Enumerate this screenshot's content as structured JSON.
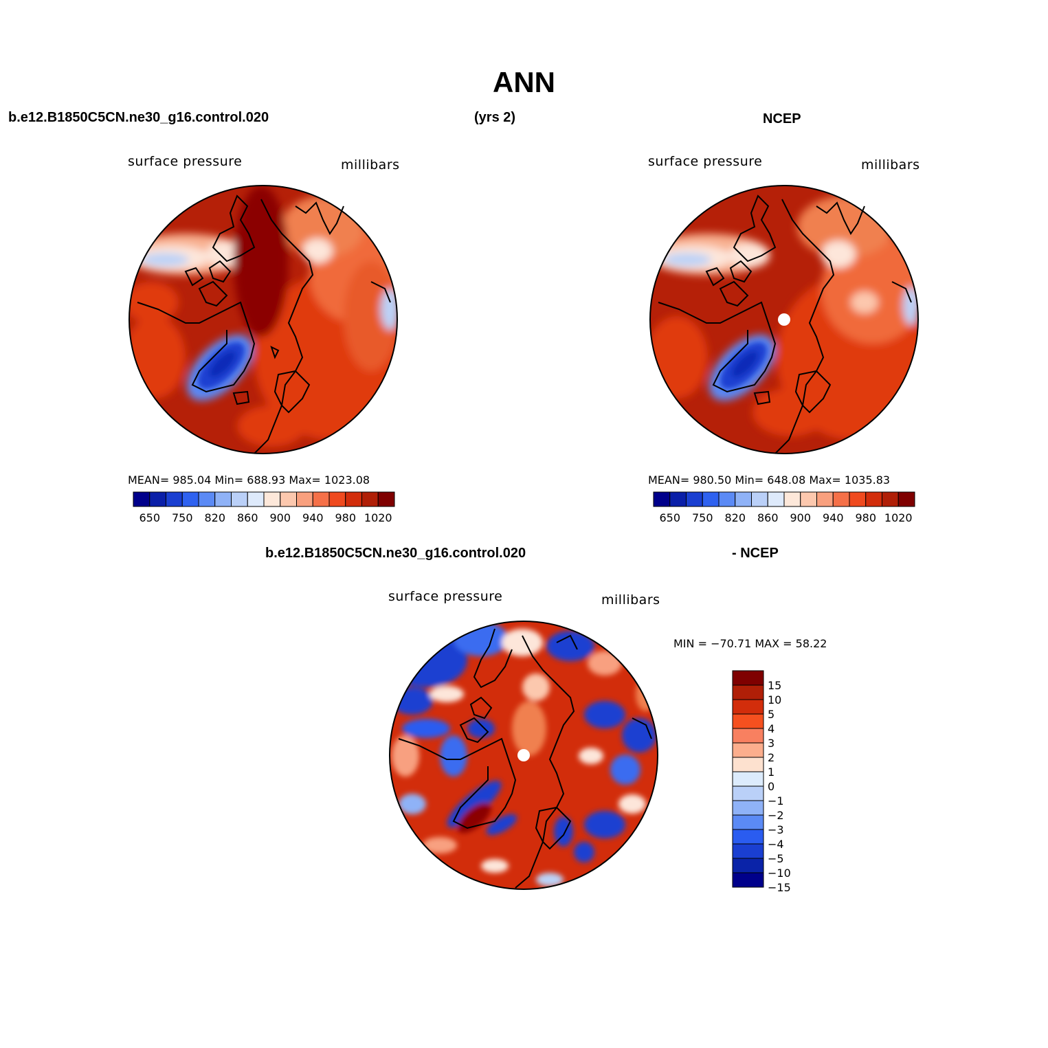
{
  "header": {
    "title": "ANN",
    "case_name": "b.e12.B1850C5CN.ne30_g16.control.020",
    "years": "(yrs 2)",
    "obs_name": "NCEP"
  },
  "panels": [
    {
      "variable": "surface pressure",
      "units": "millibars",
      "stats": "MEAN= 985.04   Min= 688.93   Max= 1023.08"
    },
    {
      "variable": "surface pressure",
      "units": "millibars",
      "stats": "MEAN= 980.50   Min= 648.08   Max= 1035.83"
    }
  ],
  "diff": {
    "case_name": "b.e12.B1850C5CN.ne30_g16.control.020",
    "obs_label": "- NCEP",
    "variable": "surface pressure",
    "units": "millibars",
    "minmax": "MIN = −70.71  MAX =   58.22"
  },
  "colorbar_top": {
    "colors": [
      "#00008b",
      "#0a1fa8",
      "#1a3fd1",
      "#2f62f0",
      "#5b8af5",
      "#8fb2f7",
      "#bad0f8",
      "#deeafb",
      "#fde8da",
      "#fcc8ae",
      "#f9a07e",
      "#f57048",
      "#ef4a1f",
      "#d22d0b",
      "#b01f07",
      "#7f0000"
    ],
    "tick_labels": [
      "650",
      "750",
      "820",
      "860",
      "900",
      "940",
      "980",
      "1020"
    ]
  },
  "colorbar_diff": {
    "colors": [
      "#7f0000",
      "#b01f07",
      "#d22d0b",
      "#f5501f",
      "#f88060",
      "#fcae8d",
      "#fde1cf",
      "#dcebfc",
      "#bad0f8",
      "#8fb2f7",
      "#5b8af5",
      "#2a5cf0",
      "#1a3fd1",
      "#0a23a8",
      "#00008b"
    ],
    "tick_labels": [
      "15",
      "10",
      "5",
      "4",
      "3",
      "2",
      "1",
      "0",
      "−1",
      "−2",
      "−3",
      "−4",
      "−5",
      "−10",
      "−15"
    ]
  },
  "map_colors": {
    "ocean_high": "#b52008",
    "very_high": "#8b0000",
    "mid_high": "#e03a10",
    "orange": "#f06a3a",
    "light": "#fbc0a0",
    "pale": "#fde6da",
    "light_blue": "#bcd2f7",
    "blue": "#3a6cf0",
    "deep_blue": "#0a2ab8"
  }
}
